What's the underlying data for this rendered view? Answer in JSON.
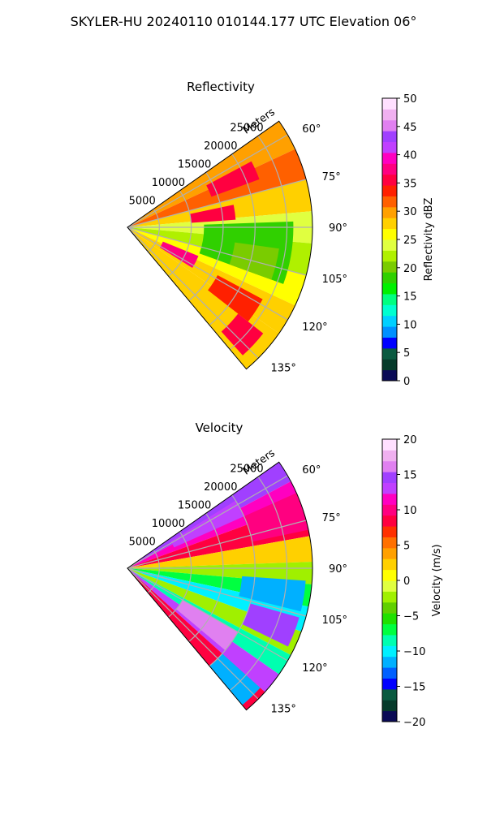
{
  "figure": {
    "suptitle": "SKYLER-HU  20240110  010144.177 UTC Elevation 06°"
  },
  "chart_data": [
    {
      "type": "heatmap",
      "subtype": "polar-sector",
      "title": "Reflectivity",
      "range_axis_label": "Meters",
      "range_ticks": [
        5000,
        10000,
        15000,
        20000,
        25000
      ],
      "range_tick_labels": [
        "5000",
        "10000",
        "15000",
        "20000",
        "25000"
      ],
      "range_max": 29000,
      "azimuth_range": [
        55,
        140
      ],
      "azimuth_ticks": [
        60,
        75,
        90,
        105,
        120,
        135
      ],
      "azimuth_tick_labels": [
        "60°",
        "75°",
        "90°",
        "105°",
        "120°",
        "135°"
      ],
      "grid": true,
      "colorbar": {
        "label": "Reflectivity dBZ",
        "min": 0,
        "max": 50,
        "ticks": [
          0,
          5,
          10,
          15,
          20,
          25,
          30,
          35,
          40,
          45,
          50
        ],
        "tick_labels": [
          "0",
          "5",
          "10",
          "15",
          "20",
          "25",
          "30",
          "35",
          "40",
          "45",
          "50"
        ],
        "colors": [
          "#0a0a55",
          "#063a2a",
          "#0a5a40",
          "#0000ff",
          "#0090ff",
          "#00d0ff",
          "#00ffd0",
          "#00ff80",
          "#00f000",
          "#30d000",
          "#7acc00",
          "#b0f000",
          "#e0ff40",
          "#ffff00",
          "#ffd000",
          "#ffa000",
          "#ff6000",
          "#ff2000",
          "#ff0040",
          "#ff0080",
          "#ff00c0",
          "#c040ff",
          "#a040ff",
          "#e080f0",
          "#f0b0f0",
          "#ffe0ff"
        ]
      },
      "sectors": [
        {
          "az": [
            55,
            65
          ],
          "r": [
            0,
            29000
          ],
          "value": 30
        },
        {
          "az": [
            65,
            75
          ],
          "r": [
            0,
            29000
          ],
          "value": 31
        },
        {
          "az": [
            75,
            85
          ],
          "r": [
            0,
            29000
          ],
          "value": 28
        },
        {
          "az": [
            85,
            95
          ],
          "r": [
            0,
            29000
          ],
          "value": 24
        },
        {
          "az": [
            95,
            105
          ],
          "r": [
            0,
            29000
          ],
          "value": 22
        },
        {
          "az": [
            105,
            115
          ],
          "r": [
            0,
            29000
          ],
          "value": 26
        },
        {
          "az": [
            115,
            125
          ],
          "r": [
            0,
            29000
          ],
          "value": 28
        },
        {
          "az": [
            125,
            140
          ],
          "r": [
            0,
            29000
          ],
          "value": 27
        },
        {
          "az": [
            62,
            70
          ],
          "r": [
            14000,
            22000
          ],
          "value": 36
        },
        {
          "az": [
            78,
            86
          ],
          "r": [
            10000,
            17000
          ],
          "value": 35
        },
        {
          "az": [
            88,
            110
          ],
          "r": [
            12000,
            26000
          ],
          "value": 19
        },
        {
          "az": [
            98,
            110
          ],
          "r": [
            17000,
            24000
          ],
          "value": 21
        },
        {
          "az": [
            112,
            122
          ],
          "r": [
            6000,
            12000
          ],
          "value": 37
        },
        {
          "az": [
            118,
            128
          ],
          "r": [
            16000,
            24000
          ],
          "value": 34
        },
        {
          "az": [
            128,
            138
          ],
          "r": [
            22000,
            27000
          ],
          "value": 36
        }
      ]
    },
    {
      "type": "heatmap",
      "subtype": "polar-sector",
      "title": "Velocity",
      "range_axis_label": "Meters",
      "range_ticks": [
        5000,
        10000,
        15000,
        20000,
        25000
      ],
      "range_tick_labels": [
        "5000",
        "10000",
        "15000",
        "20000",
        "25000"
      ],
      "range_max": 29000,
      "azimuth_range": [
        55,
        140
      ],
      "azimuth_ticks": [
        60,
        75,
        90,
        105,
        120,
        135
      ],
      "azimuth_tick_labels": [
        "60°",
        "75°",
        "90°",
        "105°",
        "120°",
        "135°"
      ],
      "grid": true,
      "colorbar": {
        "label": "Velocity (m/s)",
        "min": -20,
        "max": 20,
        "ticks": [
          -20,
          -15,
          -10,
          -5,
          0,
          5,
          10,
          15,
          20
        ],
        "tick_labels": [
          "−20",
          "−15",
          "−10",
          "−5",
          "0",
          "5",
          "10",
          "15",
          "20"
        ],
        "colors": [
          "#0a0a55",
          "#063a2a",
          "#0a5a40",
          "#0000ff",
          "#0060ff",
          "#00b0ff",
          "#00f0ff",
          "#00ffb0",
          "#00ff40",
          "#20e000",
          "#60d000",
          "#a0f000",
          "#e0ff40",
          "#ffff00",
          "#ffd000",
          "#ffa000",
          "#ff7000",
          "#ff3000",
          "#ff0040",
          "#ff0080",
          "#ff00c0",
          "#c040ff",
          "#a040ff",
          "#e080f0",
          "#f0b0f0",
          "#ffe0ff"
        ]
      },
      "sectors": [
        {
          "az": [
            55,
            62
          ],
          "r": [
            0,
            29000
          ],
          "value": 15
        },
        {
          "az": [
            62,
            70
          ],
          "r": [
            0,
            29000
          ],
          "value": 12
        },
        {
          "az": [
            70,
            80
          ],
          "r": [
            0,
            29000
          ],
          "value": 9
        },
        {
          "az": [
            80,
            88
          ],
          "r": [
            0,
            29000
          ],
          "value": 3
        },
        {
          "az": [
            88,
            95
          ],
          "r": [
            0,
            29000
          ],
          "value": -3
        },
        {
          "az": [
            95,
            102
          ],
          "r": [
            0,
            29000
          ],
          "value": -7
        },
        {
          "az": [
            102,
            110
          ],
          "r": [
            0,
            29000
          ],
          "value": -10
        },
        {
          "az": [
            110,
            118
          ],
          "r": [
            0,
            29000
          ],
          "value": -2
        },
        {
          "az": [
            118,
            125
          ],
          "r": [
            0,
            29000
          ],
          "value": -8
        },
        {
          "az": [
            125,
            132
          ],
          "r": [
            0,
            29000
          ],
          "value": 13
        },
        {
          "az": [
            132,
            140
          ],
          "r": [
            0,
            29000
          ],
          "value": 9
        },
        {
          "az": [
            58,
            66
          ],
          "r": [
            8000,
            20000
          ],
          "value": 13
        },
        {
          "az": [
            66,
            78
          ],
          "r": [
            20000,
            29000
          ],
          "value": 10
        },
        {
          "az": [
            94,
            104
          ],
          "r": [
            18000,
            28000
          ],
          "value": -12
        },
        {
          "az": [
            106,
            116
          ],
          "r": [
            20000,
            28000
          ],
          "value": 15
        },
        {
          "az": [
            120,
            130
          ],
          "r": [
            10000,
            20000
          ],
          "value": 16
        },
        {
          "az": [
            132,
            140
          ],
          "r": [
            20000,
            28000
          ],
          "value": -11
        }
      ]
    }
  ]
}
